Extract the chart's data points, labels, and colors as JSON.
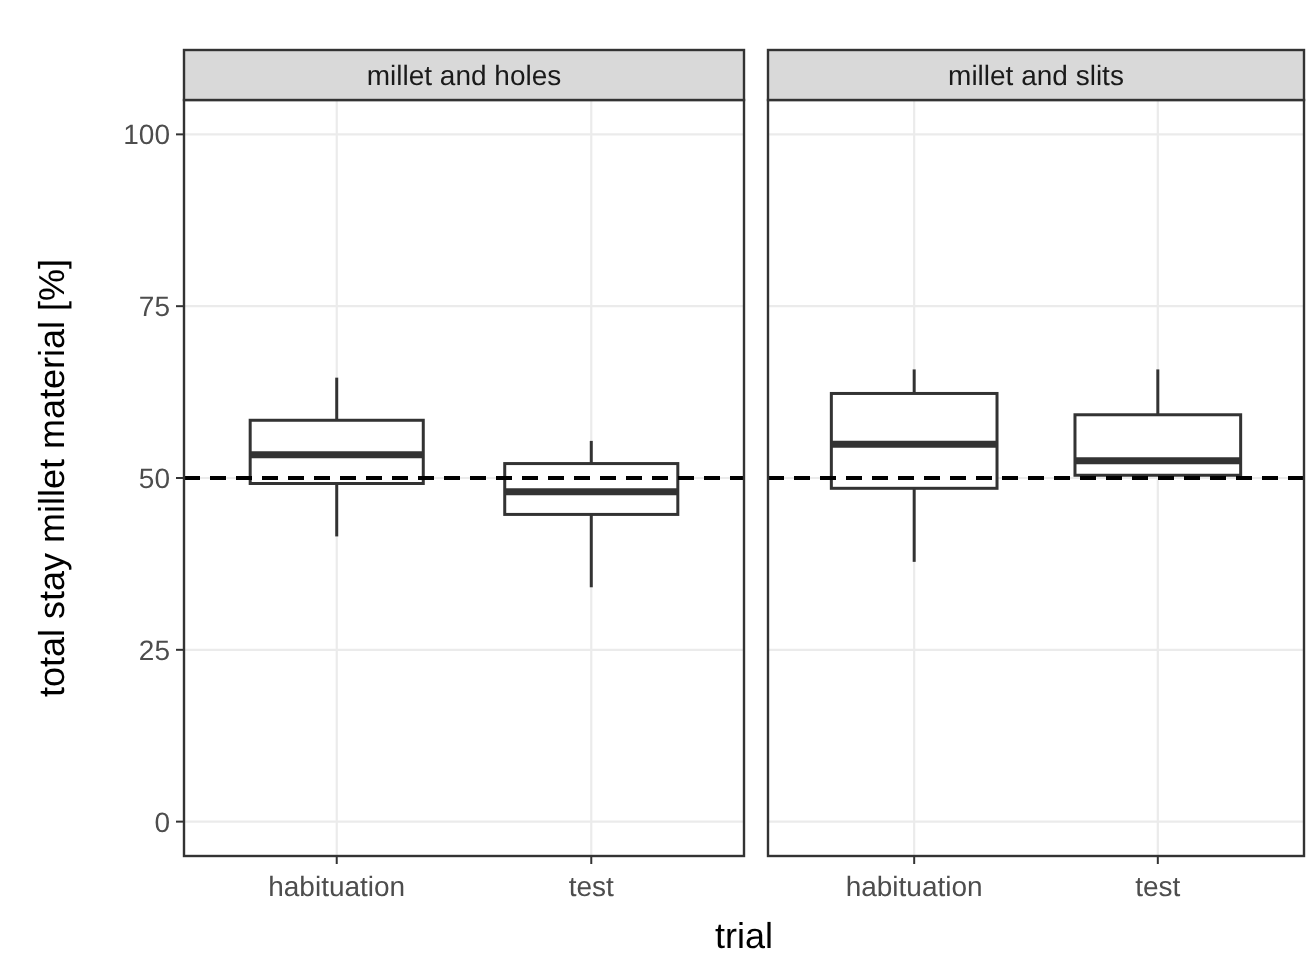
{
  "chart_data": [
    {
      "type": "box",
      "title": "millet and holes",
      "xlabel": "trial",
      "ylabel": "total stay millet material [%]",
      "categories": [
        "habituation",
        "test"
      ],
      "boxes": [
        {
          "low": 41.5,
          "q1": 49.2,
          "median": 53.4,
          "q3": 58.4,
          "high": 64.6
        },
        {
          "low": 34.1,
          "q1": 44.7,
          "median": 48.0,
          "q3": 52.1,
          "high": 55.4
        }
      ],
      "ylim": [
        -5,
        105
      ],
      "yticks": [
        0,
        25,
        50,
        75,
        100
      ],
      "grid": true,
      "ref_lines": [
        {
          "axis": "y",
          "value": 50,
          "line_style": "dashed",
          "color": "#000000"
        }
      ]
    },
    {
      "type": "box",
      "title": "millet and slits",
      "categories": [
        "habituation",
        "test"
      ],
      "boxes": [
        {
          "low": 37.8,
          "q1": 48.5,
          "median": 54.9,
          "q3": 62.3,
          "high": 65.8
        },
        {
          "low": 50.4,
          "q1": 50.4,
          "median": 52.5,
          "q3": 59.2,
          "high": 65.8
        }
      ],
      "ylim": [
        -5,
        105
      ],
      "yticks": [
        0,
        25,
        50,
        75,
        100
      ],
      "grid": true,
      "tick_labels": "x",
      "ref_lines": [
        {
          "axis": "y",
          "value": 50,
          "line_style": "dashed",
          "color": "#000000"
        }
      ]
    }
  ]
}
